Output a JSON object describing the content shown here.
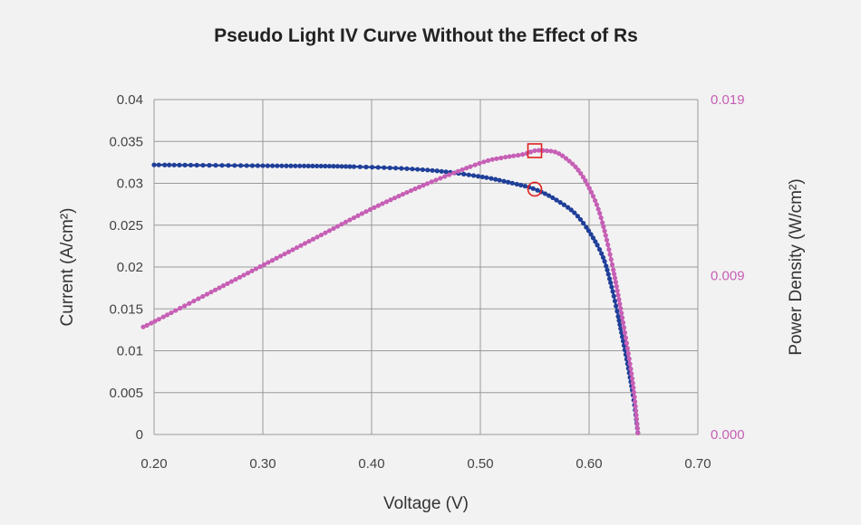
{
  "chart_data": {
    "type": "line",
    "title": "Pseudo Light IV Curve Without the Effect of Rs",
    "xlabel": "Voltage (V)",
    "ylabel": "Current (A/cm²)",
    "y2label": "Power Density (W/cm²)",
    "xlim": [
      0.2,
      0.7
    ],
    "ylim": [
      0,
      0.04
    ],
    "y2lim": [
      0,
      0.019
    ],
    "x_ticks": [
      0.2,
      0.3,
      0.4,
      0.5,
      0.6,
      0.7
    ],
    "x_tick_labels": [
      "0.20",
      "0.30",
      "0.40",
      "0.50",
      "0.60",
      "0.70"
    ],
    "y_ticks": [
      0,
      0.005,
      0.01,
      0.015,
      0.02,
      0.025,
      0.03,
      0.035,
      0.04
    ],
    "y_tick_labels": [
      "0",
      "0.005",
      "0.01",
      "0.015",
      "0.02",
      "0.025",
      "0.03",
      "0.035",
      "0.04"
    ],
    "y2_ticks": [
      0,
      0.009,
      0.019
    ],
    "y2_tick_labels": [
      "0.000",
      "0.009",
      "0.019"
    ],
    "grid": true,
    "colors": {
      "current": "#1f3f99",
      "power": "#c65fb5",
      "marker": "#e02020",
      "grid": "#999999",
      "background": "#f2f2f2"
    },
    "series": [
      {
        "name": "Current",
        "axis": "left",
        "x": [
          0.2,
          0.3,
          0.38,
          0.45,
          0.5,
          0.53,
          0.55,
          0.57,
          0.59,
          0.61,
          0.62,
          0.63,
          0.64,
          0.645
        ],
        "y": [
          0.0322,
          0.0321,
          0.032,
          0.0316,
          0.0308,
          0.03,
          0.0293,
          0.028,
          0.026,
          0.022,
          0.018,
          0.012,
          0.005,
          0.0
        ]
      },
      {
        "name": "Power Density",
        "axis": "right",
        "x": [
          0.19,
          0.2,
          0.25,
          0.3,
          0.35,
          0.4,
          0.45,
          0.5,
          0.52,
          0.54,
          0.55,
          0.56,
          0.57,
          0.58,
          0.59,
          0.6,
          0.61,
          0.62,
          0.63,
          0.64,
          0.645
        ],
        "y": [
          0.0061,
          0.0064,
          0.008,
          0.0096,
          0.0112,
          0.0128,
          0.0142,
          0.0154,
          0.0157,
          0.0159,
          0.0161,
          0.0161,
          0.016,
          0.0156,
          0.015,
          0.014,
          0.0125,
          0.01,
          0.0068,
          0.003,
          0.0
        ]
      }
    ],
    "markers": [
      {
        "name": "max-power-point",
        "shape": "square",
        "axis": "right",
        "x": 0.55,
        "y": 0.0161
      },
      {
        "name": "max-power-current",
        "shape": "circle",
        "axis": "left",
        "x": 0.55,
        "y": 0.0293
      }
    ]
  }
}
